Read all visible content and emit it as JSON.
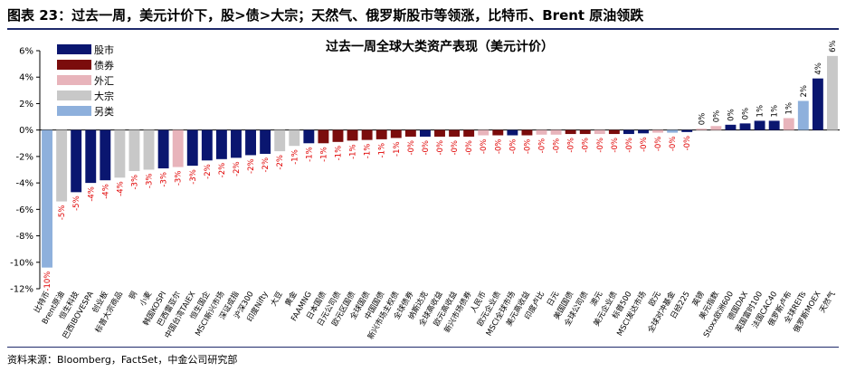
{
  "figure_title": "图表 23：过去一周，美元计价下，股>债>大宗；天然气、俄罗斯股市等领涨，比特币、Brent 原油领跌",
  "source_note": "资料来源：Bloomberg，FactSet，中金公司研究部",
  "colors": {
    "股市": "#0a1670",
    "债券": "#7b0c0c",
    "外汇": "#e8b4bb",
    "大宗": "#c8c8c8",
    "另类": "#8eb0dc",
    "label_negative": "#e00000",
    "label_positive": "#000000",
    "rule": "#1f2a6b"
  },
  "chart_data": {
    "type": "bar",
    "title": "过去一周全球大类资产表现（美元计价）",
    "xlabel": "",
    "ylabel": "",
    "ylim": [
      -12,
      6
    ],
    "yticks": [
      "-12%",
      "-10%",
      "-8%",
      "-6%",
      "-4%",
      "-2%",
      "0%",
      "2%",
      "4%",
      "6%"
    ],
    "grid": false,
    "legend_position": "top-left",
    "legend": [
      "股市",
      "债券",
      "外汇",
      "大宗",
      "另类"
    ],
    "categories": [
      "比特币",
      "Brent原油",
      "恒生科技",
      "巴西IBOVESPA",
      "创业板",
      "标普大宗商品",
      "铜",
      "小麦",
      "韩国KOSPI",
      "巴西雷亚尔",
      "中国台湾TAIEX",
      "恒生国企",
      "MSCI新兴市场",
      "深证成指",
      "沪深300",
      "印度Nifty",
      "大豆",
      "黄金",
      "FAAMNG",
      "日本国债",
      "日元公司债",
      "欧元区国债",
      "全球国债",
      "中国国债",
      "新兴市场主权债",
      "全球债券",
      "纳斯达克",
      "全球高收益",
      "欧元高收益",
      "新兴市场债券",
      "人民币",
      "欧元企业债",
      "MSCI全球市场",
      "美元高收益",
      "印度卢比",
      "日元",
      "美国国债",
      "全球公司债",
      "澳元",
      "美元企业债",
      "标普500",
      "MSCI发达市场",
      "欧元",
      "全球对冲基金",
      "日经225",
      "英镑",
      "美元指数",
      "Stoxx欧洲600",
      "德国DAX",
      "英国富时100",
      "法国CAC40",
      "俄罗斯卢布",
      "全球REITs",
      "俄罗斯MOEX",
      "天然气"
    ],
    "values": [
      -10.4,
      -5.4,
      -4.7,
      -4.0,
      -3.8,
      -3.6,
      -3.1,
      -3.0,
      -2.9,
      -2.8,
      -2.7,
      -2.3,
      -2.2,
      -2.1,
      -1.9,
      -1.8,
      -1.6,
      -1.2,
      -1.0,
      -1.0,
      -0.9,
      -0.8,
      -0.75,
      -0.7,
      -0.6,
      -0.5,
      -0.5,
      -0.5,
      -0.5,
      -0.5,
      -0.4,
      -0.4,
      -0.4,
      -0.4,
      -0.35,
      -0.35,
      -0.3,
      -0.3,
      -0.3,
      -0.3,
      -0.3,
      -0.25,
      -0.2,
      -0.2,
      -0.15,
      0.1,
      0.3,
      0.4,
      0.5,
      0.7,
      0.7,
      0.9,
      2.2,
      3.9,
      5.6
    ],
    "asset_class": [
      "另类",
      "大宗",
      "股市",
      "股市",
      "股市",
      "大宗",
      "大宗",
      "大宗",
      "股市",
      "外汇",
      "股市",
      "股市",
      "股市",
      "股市",
      "股市",
      "股市",
      "大宗",
      "大宗",
      "股市",
      "债券",
      "债券",
      "债券",
      "债券",
      "债券",
      "债券",
      "债券",
      "股市",
      "债券",
      "债券",
      "债券",
      "外汇",
      "债券",
      "股市",
      "债券",
      "外汇",
      "外汇",
      "债券",
      "债券",
      "外汇",
      "债券",
      "股市",
      "股市",
      "外汇",
      "另类",
      "股市",
      "外汇",
      "外汇",
      "股市",
      "股市",
      "股市",
      "股市",
      "外汇",
      "另类",
      "股市",
      "大宗"
    ],
    "data_labels": [
      "-10%",
      "-5%",
      "-5%",
      "-4%",
      "-4%",
      "-4%",
      "-3%",
      "-3%",
      "-3%",
      "-3%",
      "-3%",
      "-2%",
      "-2%",
      "-2%",
      "-2%",
      "-2%",
      "-2%",
      "-1%",
      "-1%",
      "-1%",
      "-1%",
      "-1%",
      "-1%",
      "-1%",
      "-1%",
      "-0%",
      "-0%",
      "-0%",
      "-0%",
      "-0%",
      "-0%",
      "-0%",
      "-0%",
      "-0%",
      "-0%",
      "-0%",
      "-0%",
      "-0%",
      "-0%",
      "-0%",
      "-0%",
      "-0%",
      "-0%",
      "-0%",
      "-0%",
      "0%",
      "0%",
      "0%",
      "0%",
      "1%",
      "1%",
      "1%",
      "2%",
      "4%",
      "6%"
    ]
  }
}
